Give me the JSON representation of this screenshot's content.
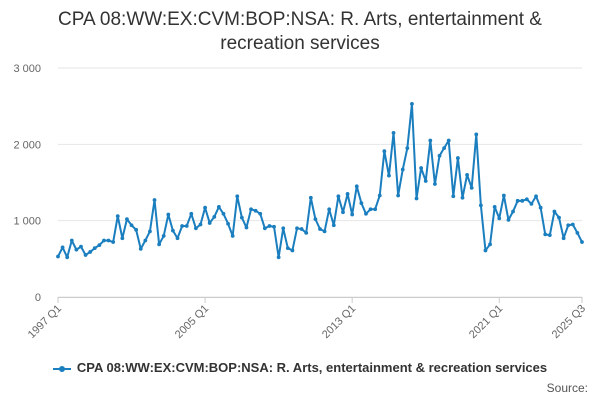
{
  "chart_data": {
    "type": "line",
    "title_lines": [
      "CPA 08:WW:EX:CVM:BOP:NSA: R. Arts, entertainment &",
      "recreation services"
    ],
    "xlabel": "",
    "ylabel": "",
    "ylim": [
      0,
      3000
    ],
    "y_ticks": [
      0,
      1000,
      2000,
      3000
    ],
    "y_tick_labels": [
      "0",
      "1 000",
      "2 000",
      "3 000"
    ],
    "x_tick_labels": [
      "1997 Q1",
      "2005 Q1",
      "2013 Q1",
      "2021 Q1",
      "2025 Q3"
    ],
    "x_tick_indices": [
      0,
      32,
      64,
      96,
      114
    ],
    "grid": true,
    "legend_position": "bottom",
    "series": [
      {
        "name": "CPA 08:WW:EX:CVM:BOP:NSA: R. Arts, entertainment & recreation services",
        "color": "#1a7ebf",
        "values": [
          530,
          650,
          520,
          740,
          620,
          660,
          550,
          590,
          640,
          680,
          740,
          740,
          720,
          1060,
          770,
          1020,
          940,
          880,
          630,
          740,
          860,
          1270,
          690,
          800,
          1080,
          870,
          770,
          930,
          930,
          1090,
          900,
          950,
          1170,
          970,
          1050,
          1180,
          1090,
          960,
          800,
          1320,
          1040,
          910,
          1150,
          1130,
          1090,
          900,
          930,
          920,
          520,
          900,
          640,
          610,
          900,
          890,
          840,
          1300,
          1020,
          890,
          860,
          1150,
          940,
          1320,
          1110,
          1350,
          1080,
          1450,
          1230,
          1090,
          1150,
          1150,
          1330,
          1910,
          1590,
          2150,
          1330,
          1670,
          1950,
          2530,
          1290,
          1690,
          1520,
          2050,
          1480,
          1850,
          1950,
          2050,
          1320,
          1820,
          1300,
          1600,
          1430,
          2130,
          1200,
          610,
          690,
          1180,
          1030,
          1330,
          1010,
          1120,
          1260,
          1260,
          1280,
          1220,
          1320,
          1170,
          820,
          810,
          1120,
          1040,
          770,
          940,
          950,
          840,
          720
        ]
      }
    ]
  },
  "legend": {
    "label": "CPA 08:WW:EX:CVM:BOP:NSA: R. Arts, entertainment & recreation services"
  },
  "source_label": "Source:"
}
